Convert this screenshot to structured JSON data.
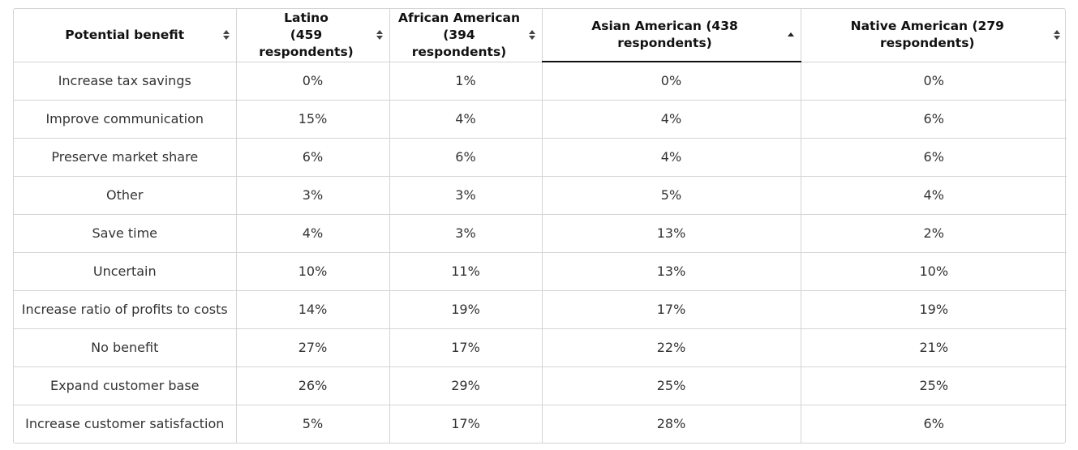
{
  "table": {
    "columns": [
      {
        "label_line1": "Potential benefit",
        "label_line2": "",
        "sort": "none"
      },
      {
        "label_line1": "Latino",
        "label_line2": "(459 respondents)",
        "sort": "none"
      },
      {
        "label_line1": "African American",
        "label_line2": "(394 respondents)",
        "sort": "none"
      },
      {
        "label_line1": "Asian American (438 respondents)",
        "label_line2": "",
        "sort": "ascending"
      },
      {
        "label_line1": "Native American (279 respondents)",
        "label_line2": "",
        "sort": "none"
      }
    ],
    "rows": [
      [
        "Increase tax savings",
        "0%",
        "1%",
        "0%",
        "0%"
      ],
      [
        "Improve communication",
        "15%",
        "4%",
        "4%",
        "6%"
      ],
      [
        "Preserve market share",
        "6%",
        "6%",
        "4%",
        "6%"
      ],
      [
        "Other",
        "3%",
        "3%",
        "5%",
        "4%"
      ],
      [
        "Save time",
        "4%",
        "3%",
        "13%",
        "2%"
      ],
      [
        "Uncertain",
        "10%",
        "11%",
        "13%",
        "10%"
      ],
      [
        "Increase ratio of profits to costs",
        "14%",
        "19%",
        "17%",
        "19%"
      ],
      [
        "No benefit",
        "27%",
        "17%",
        "22%",
        "21%"
      ],
      [
        "Expand customer base",
        "26%",
        "29%",
        "25%",
        "25%"
      ],
      [
        "Increase customer satisfaction",
        "5%",
        "17%",
        "28%",
        "6%"
      ]
    ]
  },
  "colors": {
    "border": "#d4d4d4",
    "header_text": "#111111",
    "cell_text": "#333333",
    "sort_icon": "#444444",
    "active_underline": "#111111"
  },
  "icons": {
    "unsorted": "sort-both-icon",
    "ascending": "sort-ascending-icon"
  }
}
